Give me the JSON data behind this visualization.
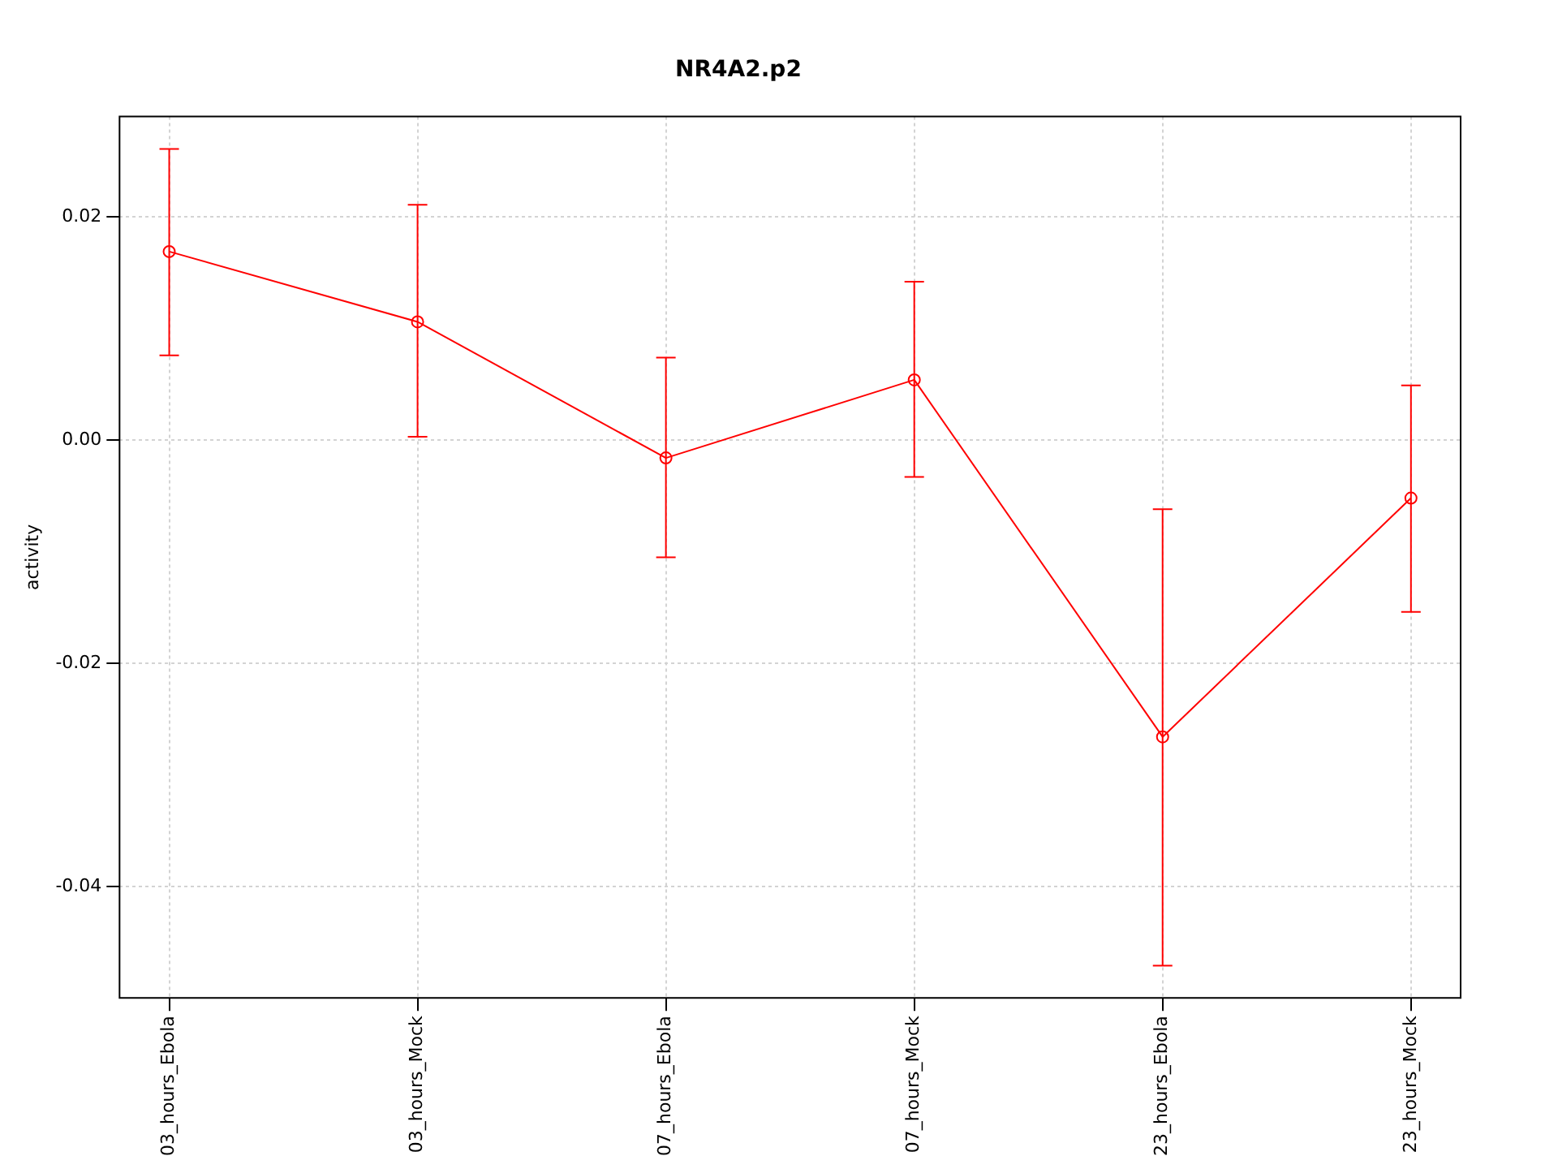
{
  "chart_data": {
    "type": "line",
    "title": "NR4A2.p2",
    "ylabel": "activity",
    "categories": [
      "03_hours_Ebola",
      "03_hours_Mock",
      "07_hours_Ebola",
      "07_hours_Mock",
      "23_hours_Ebola",
      "23_hours_Mock"
    ],
    "series": [
      {
        "color": "#ff0000",
        "values": [
          0.0169,
          0.0106,
          -0.0016,
          0.0054,
          -0.0266,
          -0.0052
        ],
        "errors": [
          [
            0.0076,
            0.0261
          ],
          [
            0.0003,
            0.0211
          ],
          [
            -0.0105,
            0.0074
          ],
          [
            -0.0033,
            0.0142
          ],
          [
            -0.0471,
            -0.0062
          ],
          [
            -0.0154,
            0.0049
          ]
        ]
      }
    ],
    "ylim": [
      -0.05,
      0.029
    ],
    "yticks": [
      {
        "value": -0.04,
        "label": "-0.04"
      },
      {
        "value": -0.02,
        "label": "-0.02"
      },
      {
        "value": 0,
        "label": "0.00"
      },
      {
        "value": 0.02,
        "label": "0.02"
      }
    ],
    "grid": true,
    "legend": false,
    "marker": "circle",
    "line_style": "solid"
  }
}
